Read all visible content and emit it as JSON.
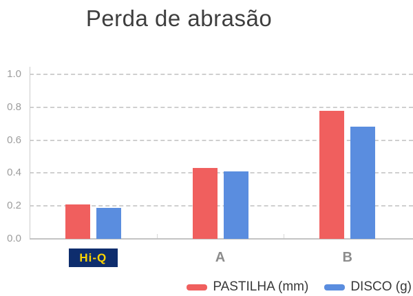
{
  "title": "Perda de abrasão",
  "chart_data": {
    "type": "bar",
    "title": "Perda de abrasão",
    "categories": [
      "Hi-Q",
      "A",
      "B"
    ],
    "series": [
      {
        "name": "PASTILHA (mm)",
        "color": "#f05f5e",
        "values": [
          0.21,
          0.43,
          0.78
        ]
      },
      {
        "name": "DISCO (g)",
        "color": "#5a8ddf",
        "values": [
          0.19,
          0.41,
          0.68
        ]
      }
    ],
    "ylim": [
      0,
      1
    ],
    "yticks": [
      {
        "value": 1.0,
        "label": "1.0"
      },
      {
        "value": 0.8,
        "label": "0.8"
      },
      {
        "value": 0.6,
        "label": "0.6"
      },
      {
        "value": 0.4,
        "label": "0.4"
      },
      {
        "value": 0.2,
        "label": "0.2"
      },
      {
        "value": 0.0,
        "label": "0.0"
      }
    ],
    "grid": "horizontal-dashed",
    "legend_position": "bottom-right"
  },
  "logo_badge": {
    "category": "Hi-Q",
    "text": "Hi-Q",
    "background": "#0e2d6d",
    "text_color": "#ffd400"
  },
  "colors": {
    "title_text": "#3e3e3e",
    "tick_text": "#9c9c9c",
    "category_text": "#8c8c8c",
    "legend_text": "#383838",
    "gridline": "#cfcfcf",
    "axis_line": "#c3c3c3",
    "bar_red": "#f05f5e",
    "bar_blue": "#5a8ddf"
  }
}
